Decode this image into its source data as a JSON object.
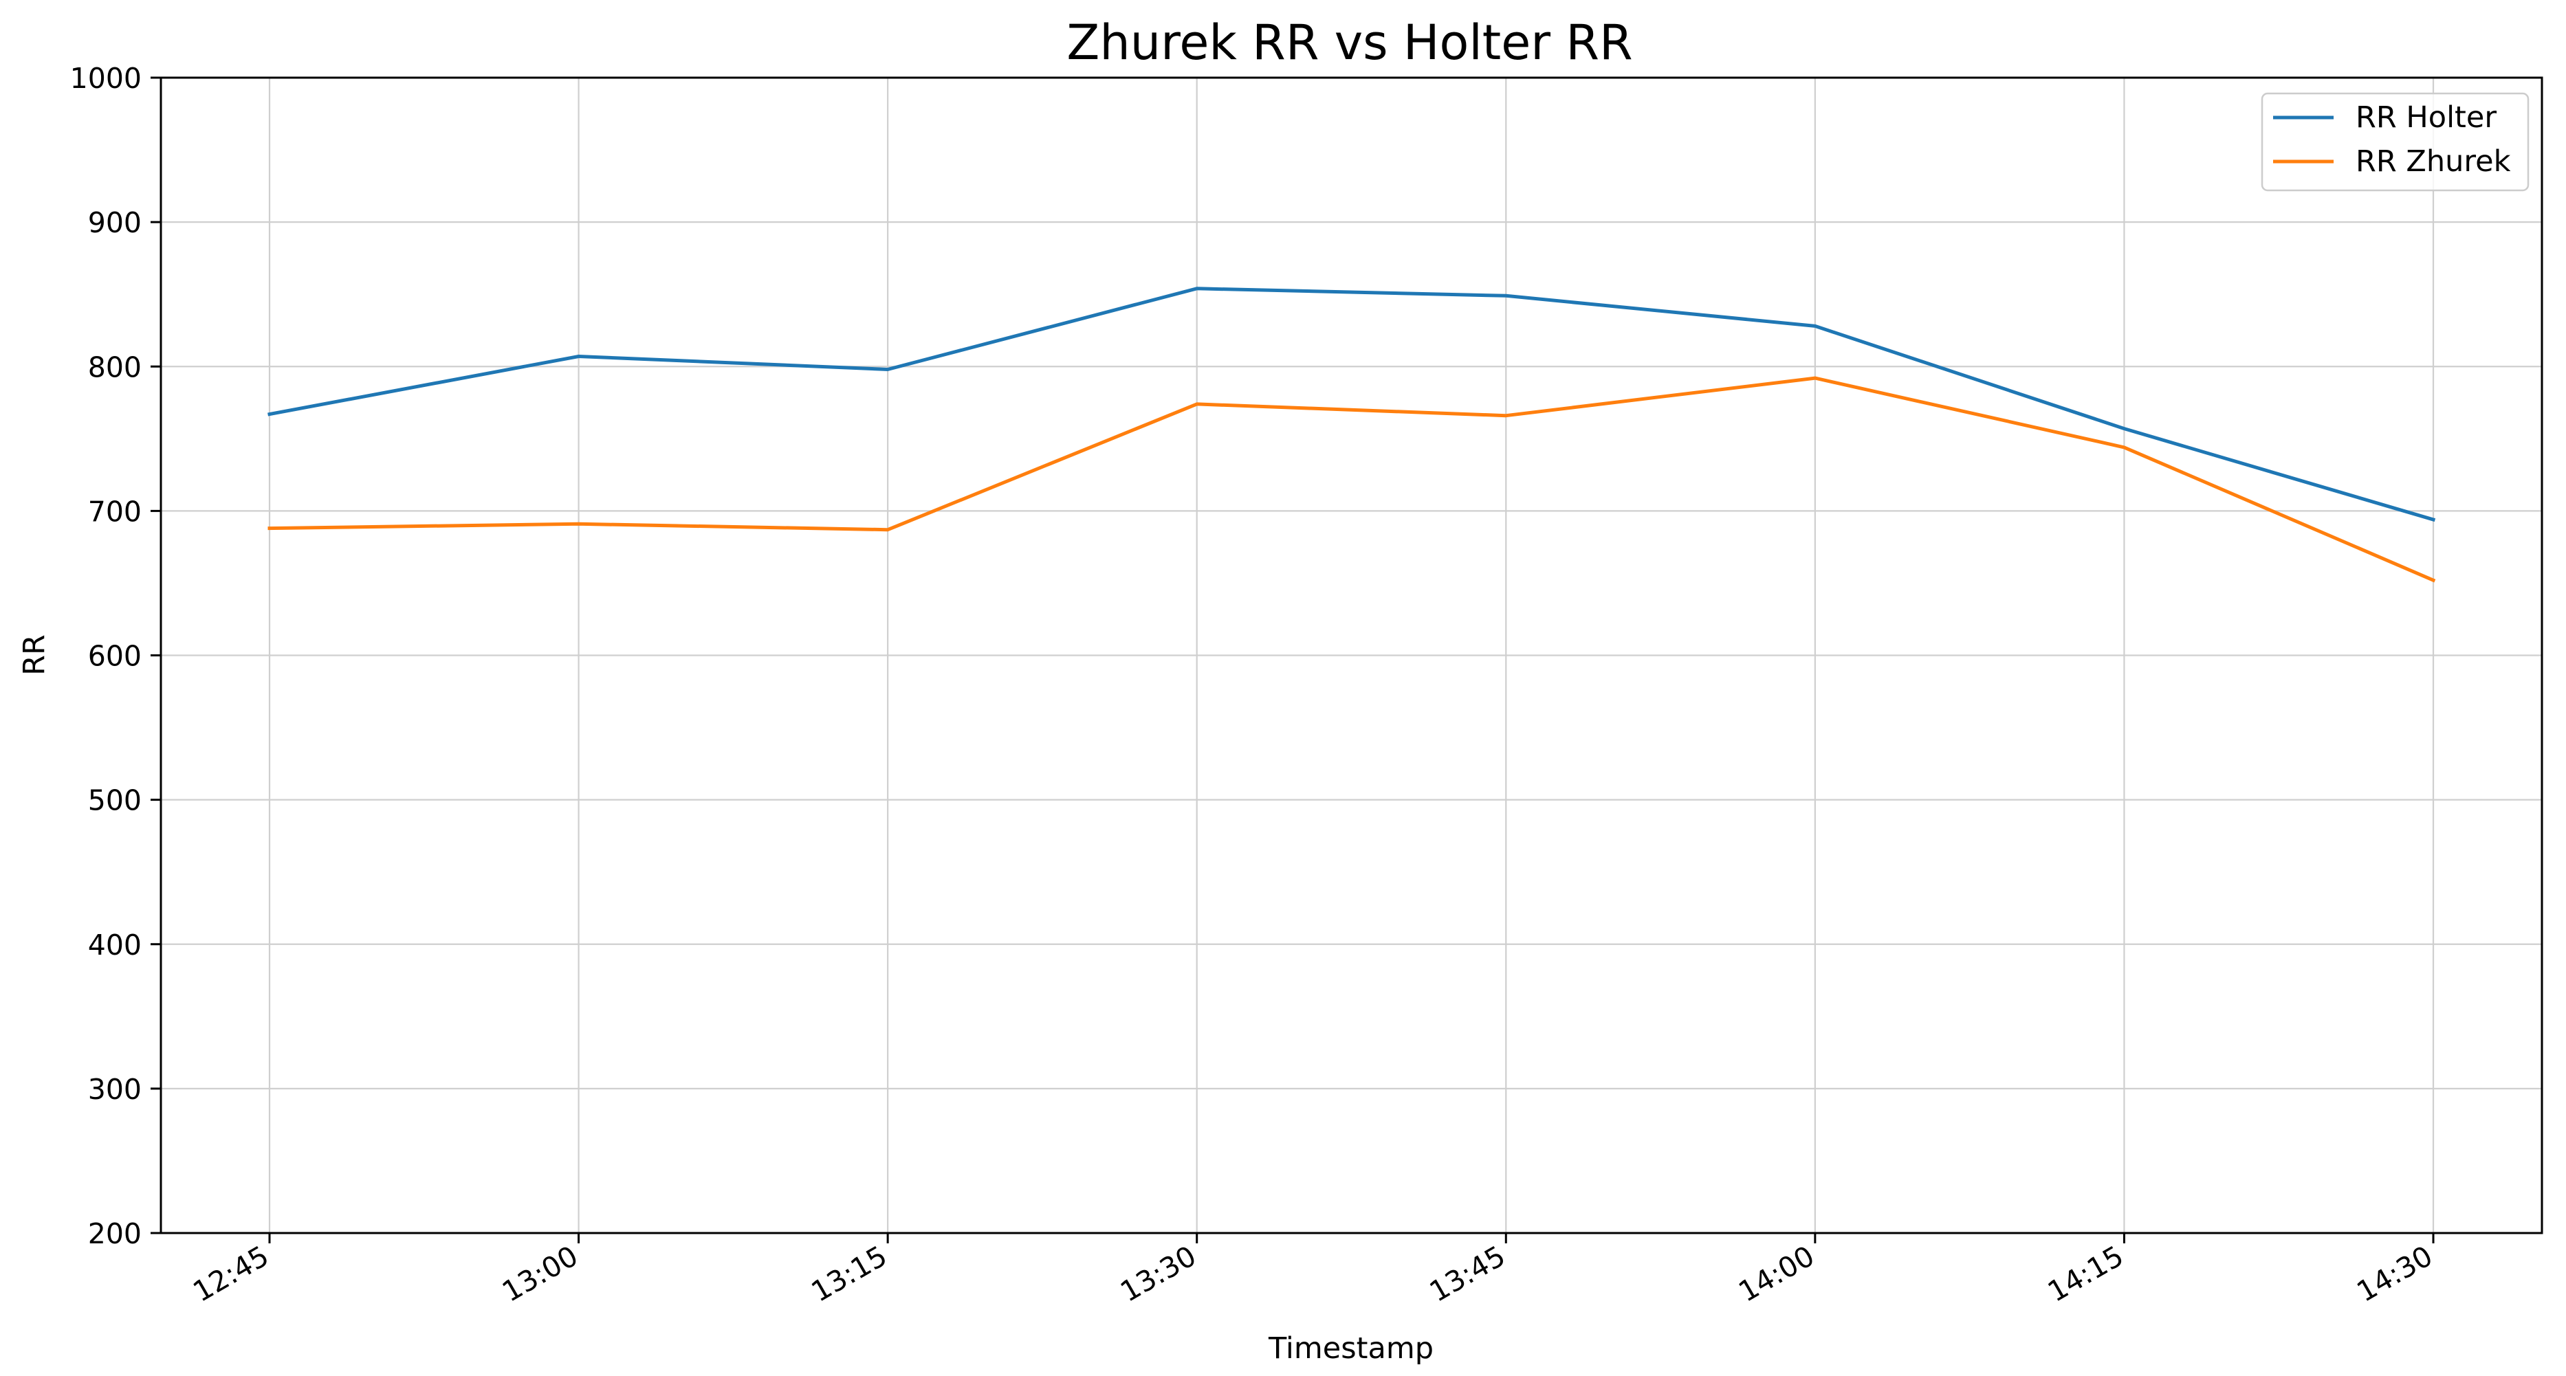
{
  "chart_data": {
    "type": "line",
    "title": "Zhurek RR vs Holter RR",
    "xlabel": "Timestamp",
    "ylabel": "RR",
    "categories": [
      "12:45",
      "13:00",
      "13:15",
      "13:30",
      "13:45",
      "14:00",
      "14:15",
      "14:30"
    ],
    "x_tick_labels": [
      "12:45",
      "13:00",
      "13:15",
      "13:30",
      "13:45",
      "14:00",
      "14:15",
      "14:30"
    ],
    "y_ticks": [
      200,
      300,
      400,
      500,
      600,
      700,
      800,
      900,
      1000
    ],
    "ylim": [
      200,
      1000
    ],
    "grid": true,
    "legend_position": "top-right",
    "series": [
      {
        "name": "RR Holter",
        "color": "#1f77b4",
        "values": [
          767,
          807,
          798,
          854,
          849,
          828,
          757,
          694
        ]
      },
      {
        "name": "RR Zhurek",
        "color": "#ff7f0e",
        "values": [
          688,
          691,
          687,
          774,
          766,
          792,
          744,
          652
        ]
      }
    ]
  }
}
